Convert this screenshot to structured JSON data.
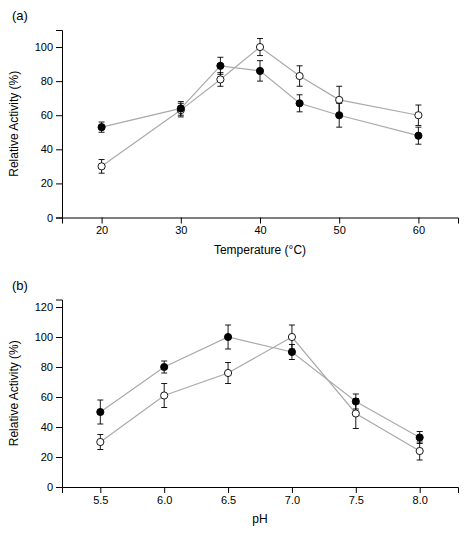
{
  "chart_data": [
    {
      "type": "line",
      "title": "(a)",
      "xlabel": "Temperature (°C)",
      "ylabel": "Relative Activity (%)",
      "x": [
        20,
        30,
        35,
        40,
        45,
        50,
        60
      ],
      "series": [
        {
          "values": [
            30,
            63,
            81,
            100,
            83,
            69,
            60
          ],
          "errors": [
            4,
            4,
            4,
            5,
            6,
            8,
            6
          ],
          "color": "#aaaaaa",
          "marker": "open"
        },
        {
          "values": [
            53,
            64,
            89,
            86,
            67,
            60,
            48
          ],
          "errors": [
            3,
            4,
            5,
            6,
            5,
            7,
            5
          ],
          "color": "#aaaaaa",
          "marker": "filled"
        }
      ],
      "xlim": [
        15,
        65
      ],
      "xticks": [
        20,
        30,
        40,
        50,
        60
      ],
      "ylim": [
        0,
        110
      ],
      "yticks": [
        0,
        20,
        40,
        60,
        80,
        100
      ],
      "grid": false
    },
    {
      "type": "line",
      "title": "(b)",
      "xlabel": "pH",
      "ylabel": "Relative Activity (%)",
      "x": [
        5.5,
        6.0,
        6.5,
        7.0,
        7.5,
        8.0
      ],
      "series": [
        {
          "values": [
            30,
            61,
            76,
            100,
            49,
            24
          ],
          "errors": [
            5,
            8,
            7,
            8,
            10,
            6
          ],
          "color": "#aaaaaa",
          "marker": "open"
        },
        {
          "values": [
            50,
            80,
            100,
            90,
            57,
            33
          ],
          "errors": [
            8,
            4,
            8,
            5,
            5,
            4
          ],
          "color": "#aaaaaa",
          "marker": "filled"
        }
      ],
      "xlim": [
        5.2,
        8.3
      ],
      "xticks": [
        5.5,
        {
          "value": 6.0,
          "label": "6.0"
        },
        6.5,
        {
          "value": 7.0,
          "label": "7.0"
        },
        7.5,
        {
          "value": 8.0,
          "label": "8.0"
        }
      ],
      "ylim": [
        0,
        125
      ],
      "yticks": [
        0,
        20,
        40,
        60,
        80,
        100,
        120
      ],
      "grid": false
    }
  ]
}
